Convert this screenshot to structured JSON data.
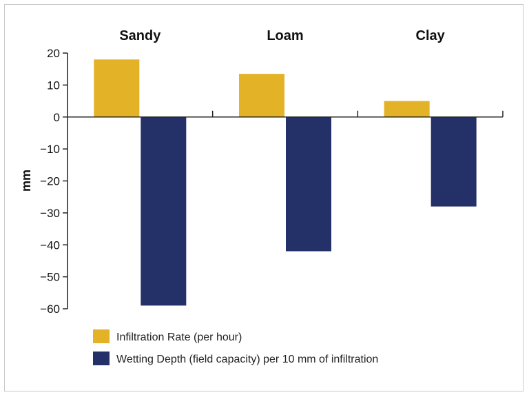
{
  "chart_data": {
    "type": "bar",
    "categories": [
      "Sandy",
      "Loam",
      "Clay"
    ],
    "series": [
      {
        "name": "Infiltration Rate (per hour)",
        "values": [
          18,
          13.5,
          5
        ],
        "color": "#e3b226"
      },
      {
        "name": "Wetting Depth (field capacity) per 10 mm of infiltration",
        "values": [
          -59,
          -42,
          -28
        ],
        "color": "#243068"
      }
    ],
    "ylabel": "mm",
    "ylim": [
      -60,
      20
    ],
    "yticks": [
      "20",
      "10",
      "0",
      "−10",
      "−20",
      "−30",
      "−40",
      "−50",
      "−60"
    ],
    "grid": false,
    "legend_position": "bottom"
  }
}
